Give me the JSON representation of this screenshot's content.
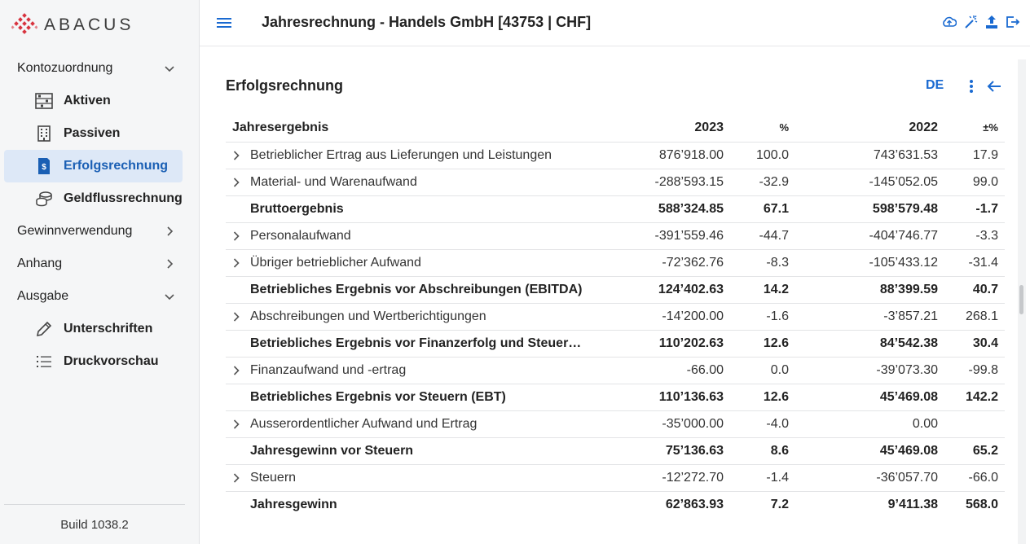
{
  "app": {
    "logo_text": "ABACUS",
    "build": "Build 1038.2"
  },
  "header": {
    "title": "Jahresrechnung - Handels GmbH [43753 | CHF]"
  },
  "sidebar": {
    "groups": [
      {
        "label": "Kontozuordnung",
        "expanded": true,
        "items": [
          {
            "label": "Aktiven",
            "icon": "abacus-icon"
          },
          {
            "label": "Passiven",
            "icon": "building-icon"
          },
          {
            "label": "Erfolgsrechnung",
            "icon": "receipt-icon",
            "active": true
          },
          {
            "label": "Geldflussrechnung",
            "icon": "coins-icon"
          }
        ]
      },
      {
        "label": "Gewinnverwendung",
        "expanded": false
      },
      {
        "label": "Anhang",
        "expanded": false
      },
      {
        "label": "Ausgabe",
        "expanded": true,
        "items": [
          {
            "label": "Unterschriften",
            "icon": "pen-icon"
          },
          {
            "label": "Druckvorschau",
            "icon": "list-icon"
          }
        ]
      }
    ]
  },
  "content": {
    "section_title": "Erfolgsrechnung",
    "lang": "DE",
    "table": {
      "headers": {
        "label": "Jahresergebnis",
        "v1": "2023",
        "p1": "%",
        "v2": "2022",
        "p2": "±%"
      },
      "rows": [
        {
          "label": "Betrieblicher Ertrag aus Lieferungen und Leistungen",
          "v1": "876’918.00",
          "p1": "100.0",
          "v2": "743’631.53",
          "p2": "17.9",
          "bold": false
        },
        {
          "label": "Material- und Warenaufwand",
          "v1": "-288’593.15",
          "p1": "-32.9",
          "v2": "-145’052.05",
          "p2": "99.0",
          "bold": false
        },
        {
          "label": "Bruttoergebnis",
          "v1": "588’324.85",
          "p1": "67.1",
          "v2": "598’579.48",
          "p2": "-1.7",
          "bold": true
        },
        {
          "label": "Personalaufwand",
          "v1": "-391’559.46",
          "p1": "-44.7",
          "v2": "-404’746.77",
          "p2": "-3.3",
          "bold": false
        },
        {
          "label": "Übriger betrieblicher Aufwand",
          "v1": "-72’362.76",
          "p1": "-8.3",
          "v2": "-105’433.12",
          "p2": "-31.4",
          "bold": false
        },
        {
          "label": "Betriebliches Ergebnis vor Abschreibungen (EBITDA)",
          "v1": "124’402.63",
          "p1": "14.2",
          "v2": "88’399.59",
          "p2": "40.7",
          "bold": true
        },
        {
          "label": "Abschreibungen und Wertberichtigungen",
          "v1": "-14’200.00",
          "p1": "-1.6",
          "v2": "-3’857.21",
          "p2": "268.1",
          "bold": false
        },
        {
          "label": "Betriebliches Ergebnis vor Finanzerfolg und Steuer…",
          "v1": "110’202.63",
          "p1": "12.6",
          "v2": "84’542.38",
          "p2": "30.4",
          "bold": true
        },
        {
          "label": "Finanzaufwand und -ertrag",
          "v1": "-66.00",
          "p1": "0.0",
          "v2": "-39’073.30",
          "p2": "-99.8",
          "bold": false
        },
        {
          "label": "Betriebliches Ergebnis vor Steuern (EBT)",
          "v1": "110’136.63",
          "p1": "12.6",
          "v2": "45’469.08",
          "p2": "142.2",
          "bold": true
        },
        {
          "label": "Ausserordentlicher Aufwand und Ertrag",
          "v1": "-35’000.00",
          "p1": "-4.0",
          "v2": "0.00",
          "p2": "",
          "bold": false
        },
        {
          "label": "Jahresgewinn vor Steuern",
          "v1": "75’136.63",
          "p1": "8.6",
          "v2": "45’469.08",
          "p2": "65.2",
          "bold": true
        },
        {
          "label": "Steuern",
          "v1": "-12’272.70",
          "p1": "-1.4",
          "v2": "-36’057.70",
          "p2": "-66.0",
          "bold": false
        },
        {
          "label": "Jahresgewinn",
          "v1": "62’863.93",
          "p1": "7.2",
          "v2": "9’411.38",
          "p2": "568.0",
          "bold": true
        }
      ]
    }
  },
  "colors": {
    "accent": "#1a6ad1",
    "active_bg": "#dde8f7",
    "logo_red": "#d8343f"
  }
}
